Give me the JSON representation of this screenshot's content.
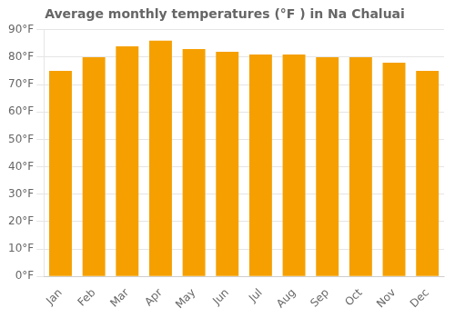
{
  "chart_data": {
    "type": "bar",
    "title": "Average monthly temperatures (°F ) in Na Chaluai",
    "categories": [
      "Jan",
      "Feb",
      "Mar",
      "Apr",
      "May",
      "Jun",
      "Jul",
      "Aug",
      "Sep",
      "Oct",
      "Nov",
      "Dec"
    ],
    "values": [
      75,
      80,
      84,
      86,
      83,
      82,
      81,
      81,
      80,
      80,
      78,
      75
    ],
    "color": "#F5A000",
    "ylim": [
      0,
      90
    ],
    "yticks": [
      {
        "value": 0,
        "label": "0°F"
      },
      {
        "value": 10,
        "label": "10°F"
      },
      {
        "value": 20,
        "label": "20°F"
      },
      {
        "value": 30,
        "label": "30°F"
      },
      {
        "value": 40,
        "label": "40°F"
      },
      {
        "value": 50,
        "label": "50°F"
      },
      {
        "value": 60,
        "label": "60°F"
      },
      {
        "value": 70,
        "label": "70°F"
      },
      {
        "value": 80,
        "label": "80°F"
      },
      {
        "value": 90,
        "label": "90°F"
      }
    ],
    "grid": true
  }
}
